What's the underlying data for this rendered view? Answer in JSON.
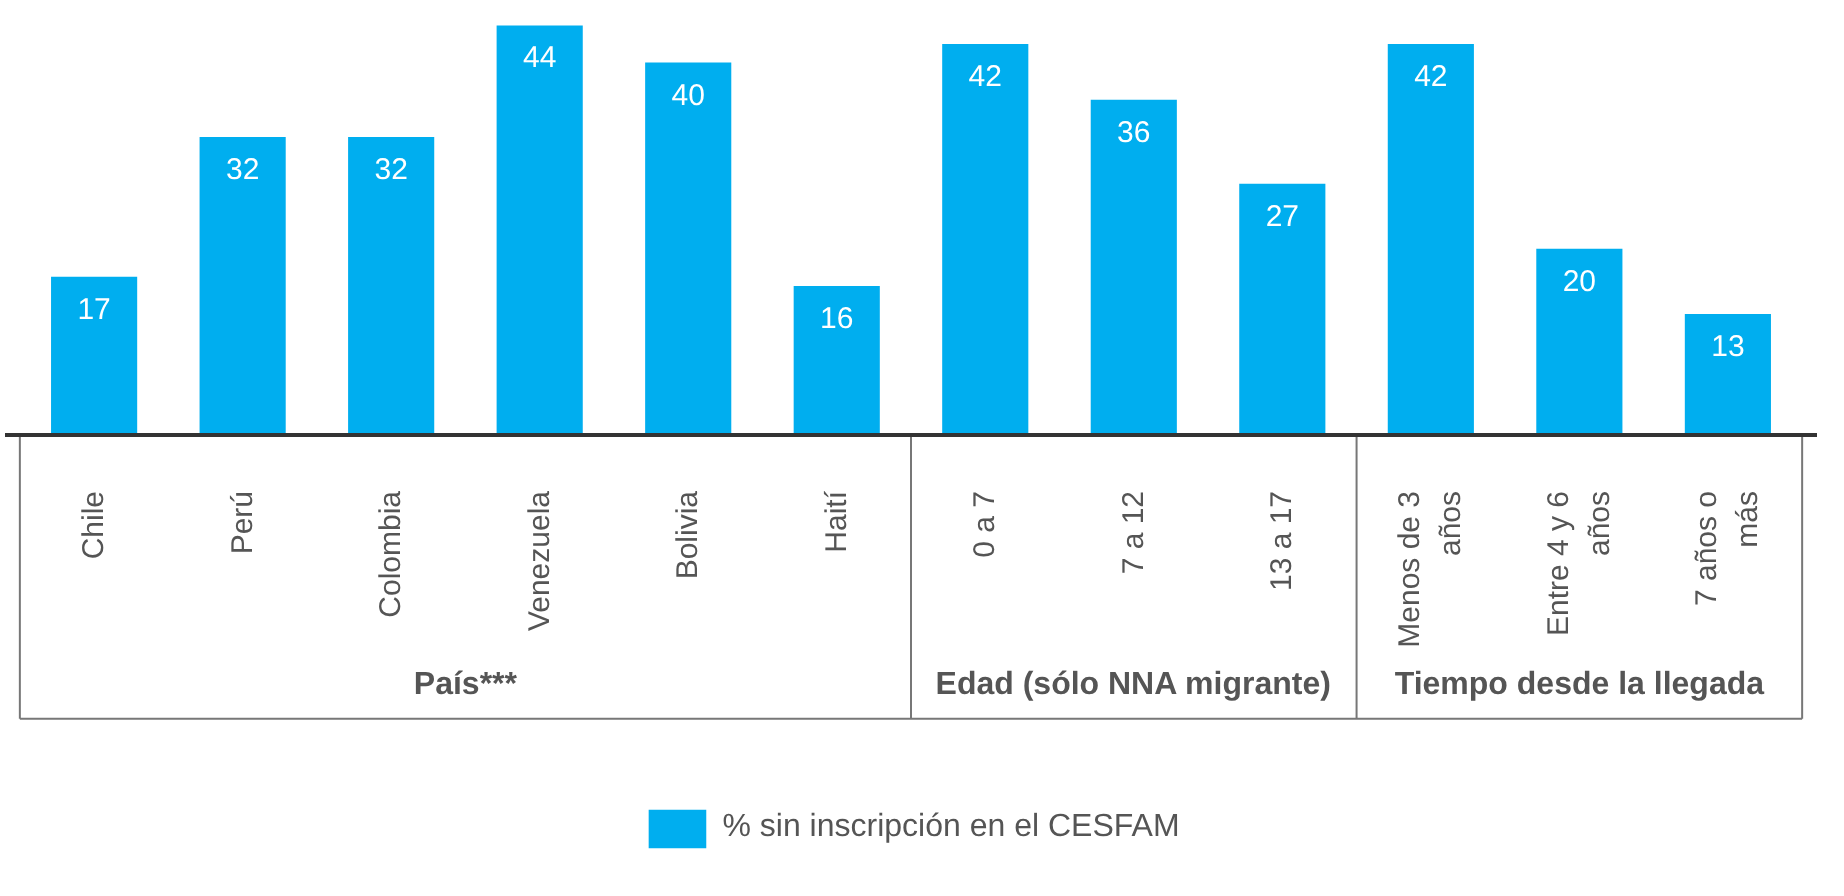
{
  "chart_data": {
    "type": "bar",
    "categories": [
      "Chile",
      "Perú",
      "Colombia",
      "Venezuela",
      "Bolivia",
      "Haití",
      "0 a 7",
      "7 a 12",
      "13 a 17",
      "Menos de 3 años",
      "Entre 4 y 6 años",
      "7 años o más"
    ],
    "series": [
      {
        "name": "% sin inscripción en el CESFAM",
        "color": "#00aeef",
        "values": [
          17,
          32,
          32,
          44,
          40,
          16,
          42,
          36,
          27,
          42,
          20,
          13
        ]
      }
    ],
    "data_labels": true,
    "legend": "bottom",
    "grid": false,
    "annotations": [
      "País***",
      "Edad (sólo NNA migrante)",
      "Tiempo desde la llegada"
    ]
  }
}
